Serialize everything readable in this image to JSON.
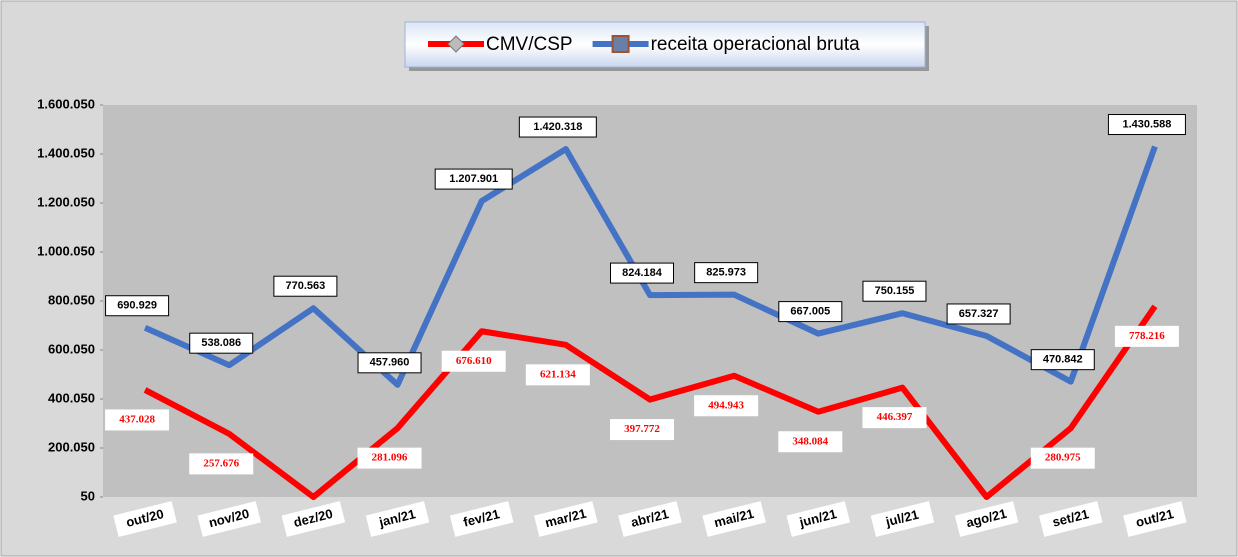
{
  "chart_data": {
    "type": "line",
    "categories": [
      "out/20",
      "nov/20",
      "dez/20",
      "jan/21",
      "fev/21",
      "mar/21",
      "abr/21",
      "mai/21",
      "jun/21",
      "jul/21",
      "ago/21",
      "set/21",
      "out/21"
    ],
    "series": [
      {
        "name": "CMV/CSP",
        "color": "#ff0000",
        "values": [
          437028,
          257676,
          50,
          281096,
          676610,
          621134,
          397772,
          494943,
          348084,
          446397,
          50,
          280975,
          778216
        ],
        "value_labels": [
          "437.028",
          "257.676",
          null,
          "281.096",
          "676.610",
          "621.134",
          "397.772",
          "494.943",
          "348.084",
          "446.397",
          null,
          "280.975",
          "778.216"
        ]
      },
      {
        "name": "receita operacional bruta",
        "color": "#4472c4",
        "values": [
          690929,
          538086,
          770563,
          457960,
          1207901,
          1420318,
          824184,
          825973,
          667005,
          750155,
          657327,
          470842,
          1430588
        ],
        "value_labels": [
          "690.929",
          "538.086",
          "770.563",
          "457.960",
          "1.207.901",
          "1.420.318",
          "824.184",
          "825.973",
          "667.005",
          "750.155",
          "657.327",
          "470.842",
          "1.430.588"
        ]
      }
    ],
    "ylim": [
      50,
      1600050
    ],
    "yticks": [
      50,
      {
        "value": 200050,
        "label": "200.050"
      },
      {
        "value": 400050,
        "label": "400.050"
      },
      {
        "value": 600050,
        "label": "600.050"
      },
      {
        "value": 800050,
        "label": "800.050"
      },
      {
        "value": 1000050,
        "label": "1.000.050"
      },
      {
        "value": 1200050,
        "label": "1.200.050"
      },
      {
        "value": 1400050,
        "label": "1.400.050"
      },
      {
        "value": 1600050,
        "label": "1.600.050"
      }
    ],
    "grid": false,
    "legend": "top"
  }
}
